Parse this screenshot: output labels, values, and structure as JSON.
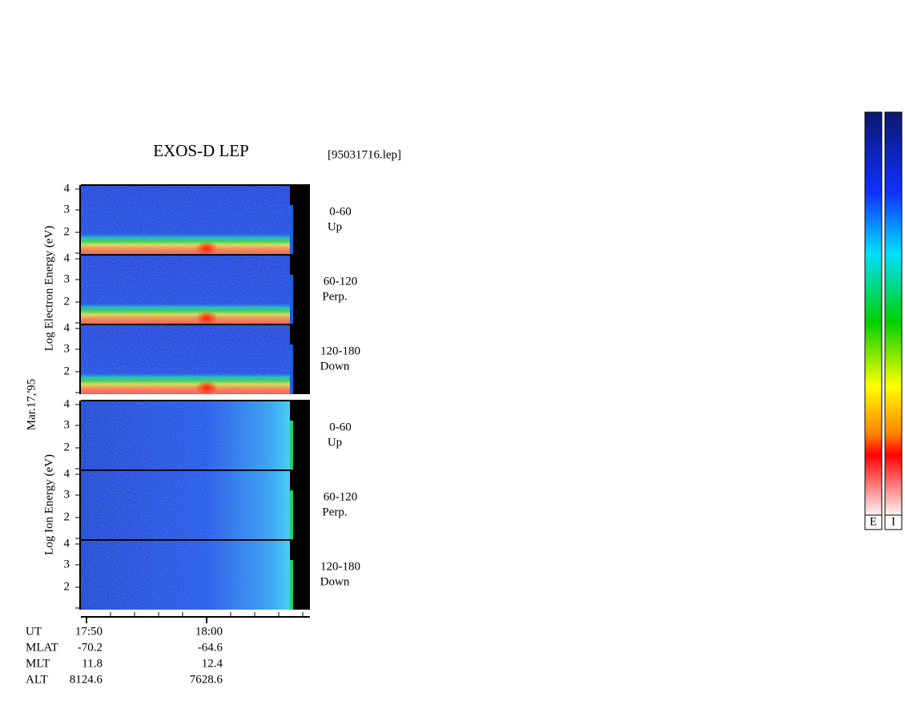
{
  "title": "EXOS-D LEP",
  "file": "[95031716.lep]",
  "date": "Mar.17,'95",
  "species_labels": [
    "Log  Electron  Energy (eV)",
    "Log  Ion  Energy (eV)"
  ],
  "panels": [
    {
      "species": "electron",
      "yticks": [
        "4",
        "3",
        "2"
      ],
      "angle": "0-60",
      "direction": "Up"
    },
    {
      "species": "electron",
      "yticks": [
        "4",
        "3",
        "2"
      ],
      "angle": "60-120",
      "direction": "Perp."
    },
    {
      "species": "electron",
      "yticks": [
        "4",
        "3",
        "2"
      ],
      "angle": "120-180",
      "direction": "Down"
    },
    {
      "species": "ion",
      "yticks": [
        "4",
        "3",
        "2"
      ],
      "angle": "0-60",
      "direction": "Up"
    },
    {
      "species": "ion",
      "yticks": [
        "4",
        "3",
        "2"
      ],
      "angle": "60-120",
      "direction": "Perp."
    },
    {
      "species": "ion",
      "yticks": [
        "4",
        "3",
        "2"
      ],
      "angle": "120-180",
      "direction": "Down"
    }
  ],
  "time_table": {
    "rows": [
      [
        "UT",
        "17:50",
        "18:00"
      ],
      [
        "MLAT",
        "-70.2",
        "-64.6"
      ],
      [
        "MLT",
        "11.8",
        "12.4"
      ],
      [
        "ALT",
        "8124.6",
        "7628.6"
      ]
    ]
  },
  "colorbars": [
    "E",
    "I"
  ]
}
